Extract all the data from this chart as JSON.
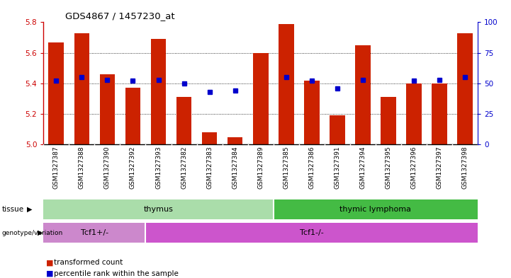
{
  "title": "GDS4867 / 1457230_at",
  "samples": [
    "GSM1327387",
    "GSM1327388",
    "GSM1327390",
    "GSM1327392",
    "GSM1327393",
    "GSM1327382",
    "GSM1327383",
    "GSM1327384",
    "GSM1327389",
    "GSM1327385",
    "GSM1327386",
    "GSM1327391",
    "GSM1327394",
    "GSM1327395",
    "GSM1327396",
    "GSM1327397",
    "GSM1327398"
  ],
  "transformed_counts": [
    5.67,
    5.73,
    5.46,
    5.37,
    5.69,
    5.31,
    5.08,
    5.05,
    5.6,
    5.79,
    5.42,
    5.19,
    5.65,
    5.31,
    5.4,
    5.4,
    5.73
  ],
  "percentile_ranks": [
    52,
    55,
    53,
    52,
    53,
    50,
    43,
    44,
    null,
    55,
    52,
    46,
    53,
    null,
    52,
    53,
    55
  ],
  "ylim_left": [
    5.0,
    5.8
  ],
  "ylim_right": [
    0,
    100
  ],
  "yticks_left": [
    5.0,
    5.2,
    5.4,
    5.6,
    5.8
  ],
  "yticks_right": [
    0,
    25,
    50,
    75,
    100
  ],
  "tissue_groups": [
    {
      "label": "thymus",
      "start": 0,
      "end": 9,
      "color": "#aaddaa"
    },
    {
      "label": "thymic lymphoma",
      "start": 9,
      "end": 17,
      "color": "#44bb44"
    }
  ],
  "genotype_groups": [
    {
      "label": "Tcf1+/-",
      "start": 0,
      "end": 4,
      "color": "#cc88cc"
    },
    {
      "label": "Tcf1-/-",
      "start": 4,
      "end": 17,
      "color": "#cc55cc"
    }
  ],
  "bar_color": "#CC2200",
  "dot_color": "#0000CC",
  "background_color": "#FFFFFF",
  "plot_bg_color": "#FFFFFF",
  "grid_color": "#000000",
  "ylabel_left_color": "#CC0000",
  "ylabel_right_color": "#0000CC",
  "title_color": "#000000",
  "tick_label_color_left": "#CC0000",
  "tick_label_color_right": "#0000CC",
  "sample_bg_color": "#CCCCCC",
  "legend_items": [
    {
      "label": "transformed count",
      "color": "#CC2200"
    },
    {
      "label": "percentile rank within the sample",
      "color": "#0000CC"
    }
  ]
}
